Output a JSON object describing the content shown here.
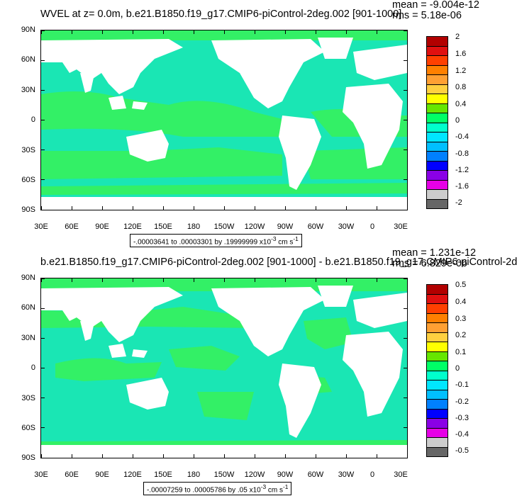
{
  "panels": [
    {
      "title": "WVEL at z=   0.0m, b.e21.B1850.f19_g17.CMIP6-piControl-2deg.002 [901-1000]",
      "mean": "mean = -9.004e-12",
      "rms": "rms = 5.18e-06",
      "info_text": "-.00003641 to .00003301 by .19999999 x10",
      "info_exp": "-3",
      "info_unit": " cm s",
      "info_unit_exp": "-1",
      "colorbar_labels": [
        "2",
        "1.6",
        "1.2",
        "0.8",
        "0.4",
        "0",
        "-0.4",
        "-0.8",
        "-1.2",
        "-1.6",
        "-2"
      ],
      "colorbar_colors": [
        "#b20000",
        "#e01010",
        "#ff4000",
        "#ff8000",
        "#ffa033",
        "#ffd040",
        "#ffff00",
        "#66e600",
        "#00ff66",
        "#00ffcc",
        "#00e6ff",
        "#00bfff",
        "#0080ff",
        "#0000ff",
        "#8a00e6",
        "#e600e6",
        "#cccccc",
        "#666666"
      ],
      "ocean_color": "#1ae6b4",
      "band_color": "#33f066"
    },
    {
      "title": "b.e21.B1850.f19_g17.CMIP6-piControl-2deg.002 [901-1000] - b.e21.B1850.f19_g17.CMIP6-piControl-2d",
      "mean": "mean = 1.231e-12",
      "rms": "rms = 6.829e-06",
      "info_text": "-.00007259 to .00005786 by .05 x10",
      "info_exp": "-3",
      "info_unit": " cm s",
      "info_unit_exp": "-1",
      "colorbar_labels": [
        "0.5",
        "0.4",
        "0.3",
        "0.2",
        "0.1",
        "0",
        "-0.1",
        "-0.2",
        "-0.3",
        "-0.4",
        "-0.5"
      ],
      "colorbar_colors": [
        "#b20000",
        "#e01010",
        "#ff4000",
        "#ff8000",
        "#ffa033",
        "#ffd040",
        "#ffff00",
        "#66e600",
        "#00ff66",
        "#00ffcc",
        "#00e6ff",
        "#00bfff",
        "#0080ff",
        "#0000ff",
        "#8a00e6",
        "#e600e6",
        "#cccccc",
        "#666666"
      ],
      "ocean_color": "#1ae6b4",
      "band_color": "#33f066"
    }
  ],
  "y_axis_labels": [
    "90N",
    "60N",
    "30N",
    "0",
    "30S",
    "60S",
    "90S"
  ],
  "x_axis_labels": [
    "30E",
    "60E",
    "90E",
    "120E",
    "150E",
    "180",
    "150W",
    "120W",
    "90W",
    "60W",
    "30W",
    "0",
    "30E"
  ]
}
